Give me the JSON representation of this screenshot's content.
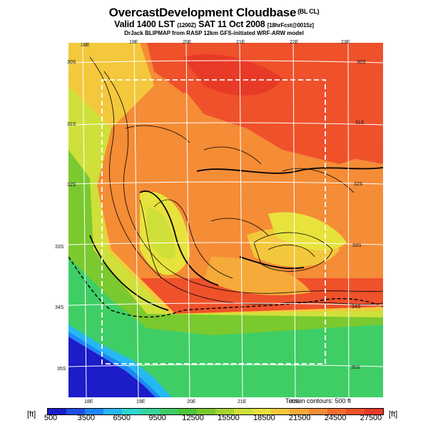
{
  "title": {
    "main": "OvercastDevelopment Cloudbase",
    "main_tag": "(BL CL)",
    "valid": "Valid 1400 LST",
    "valid_code": "(1200Z)",
    "valid_date": "SAT 11 Oct 2008",
    "forecast": "[18hrFcst@0015z]",
    "credit": "DrJack BLIPMAP from RASP 12km GFS-initiated WRF-ARW model"
  },
  "map": {
    "lon_labels_top": [
      "18E",
      "19E",
      "20E",
      "21E",
      "22E",
      "23E"
    ],
    "lon_labels_bottom": [
      "18E",
      "19E",
      "20E",
      "21E",
      "22E"
    ],
    "lat_labels_left": [
      "30S",
      "31S",
      "32S",
      "33S",
      "34S",
      "35S"
    ],
    "lat_labels_right": [
      "30S",
      "31S",
      "32S",
      "33S",
      "34S",
      "35S"
    ],
    "terrain_note": "Terrain contours: 500 ft"
  },
  "colorbar": {
    "unit_left": "[ft]",
    "unit_right": "[ft]",
    "ticks": [
      "500",
      "3500",
      "6500",
      "9500",
      "12500",
      "15500",
      "18500",
      "21500",
      "24500",
      "27500"
    ],
    "colors": [
      "#1c1cc8",
      "#1f4fe6",
      "#1f86f5",
      "#26b8f2",
      "#2fd6d0",
      "#37d79b",
      "#3fce66",
      "#50c43a",
      "#7ac92f",
      "#a6d431",
      "#cfe03a",
      "#e8e23d",
      "#f3c83c",
      "#f5aa3a",
      "#f58c36",
      "#f26e30",
      "#ef512b",
      "#e83a27"
    ]
  }
}
